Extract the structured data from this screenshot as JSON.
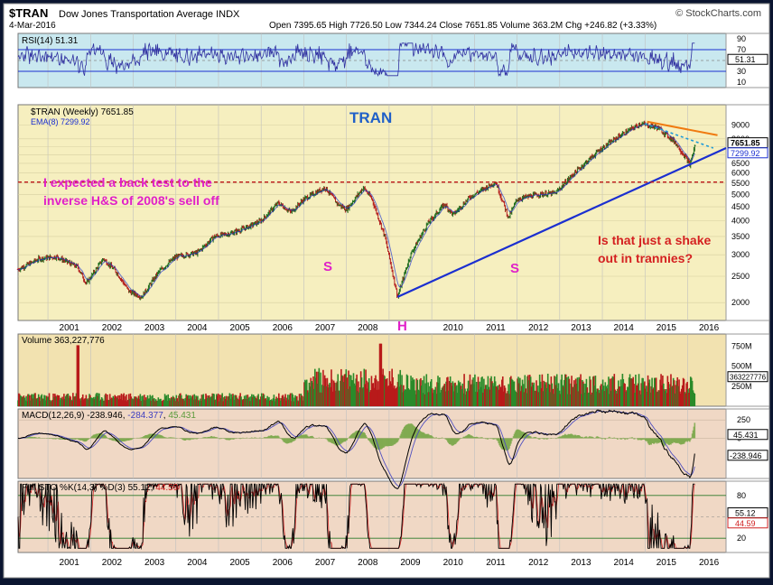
{
  "header": {
    "symbol": "$TRAN",
    "name": "Dow Jones Transportation Average INDX",
    "date": "4-Mar-2016",
    "watermark": "© StockCharts.com",
    "ohlc": "Open 7395.65  High 7726.50  Low 7344.24  Close 7651.85  Volume 363.2M  Chg +246.82 (+3.33%)",
    "chg_value": "+246.82 (+3.33%)"
  },
  "colors": {
    "price_bg": "#f6efbf",
    "rsi_bg": "#c9e8ef",
    "vol_bg": "#f2e2b0",
    "low_bg": "#f0d8c5",
    "up": "#1d6b1d",
    "down": "#b21d1d",
    "trend": "#1b2fd0",
    "annot_pink": "#e020c8",
    "annot_red": "#d42020",
    "title_blue": "#2060c8"
  },
  "chart_data": {
    "type": "line",
    "title": "TRAN",
    "x_years": [
      "2001",
      "2002",
      "2003",
      "2004",
      "2005",
      "2006",
      "2007",
      "2008",
      "2009",
      "2010",
      "2011",
      "2012",
      "2013",
      "2014",
      "2015",
      "2016"
    ],
    "price": {
      "label": "$TRAN (Weekly) 7651.85",
      "ema_label": "EMA(8) 7299.92",
      "last": "7651.85",
      "ema_last": "7299.92",
      "y_ticks": [
        "9000",
        "8000",
        "7500",
        "7000",
        "6500",
        "6000",
        "5500",
        "5000",
        "4500",
        "4000",
        "3500",
        "3000",
        "2500",
        "2000"
      ],
      "anchors": [
        [
          2000.3,
          2650
        ],
        [
          2000.8,
          2900
        ],
        [
          2001.2,
          2950
        ],
        [
          2001.7,
          2700
        ],
        [
          2001.9,
          2350
        ],
        [
          2002.3,
          2900
        ],
        [
          2002.6,
          2600
        ],
        [
          2002.9,
          2200
        ],
        [
          2003.2,
          2100
        ],
        [
          2003.6,
          2600
        ],
        [
          2004.0,
          2950
        ],
        [
          2004.5,
          3050
        ],
        [
          2004.9,
          3500
        ],
        [
          2005.3,
          3600
        ],
        [
          2005.7,
          3800
        ],
        [
          2006.0,
          4000
        ],
        [
          2006.4,
          4650
        ],
        [
          2006.7,
          4300
        ],
        [
          2007.0,
          4800
        ],
        [
          2007.5,
          5300
        ],
        [
          2007.8,
          4600
        ],
        [
          2008.0,
          4400
        ],
        [
          2008.4,
          5300
        ],
        [
          2008.6,
          4800
        ],
        [
          2008.9,
          3500
        ],
        [
          2009.2,
          2100
        ],
        [
          2009.5,
          3000
        ],
        [
          2009.9,
          3900
        ],
        [
          2010.3,
          4600
        ],
        [
          2010.5,
          4200
        ],
        [
          2010.9,
          4900
        ],
        [
          2011.5,
          5550
        ],
        [
          2011.8,
          4100
        ],
        [
          2012.0,
          4800
        ],
        [
          2012.5,
          5000
        ],
        [
          2012.9,
          5050
        ],
        [
          2013.3,
          5900
        ],
        [
          2013.9,
          7200
        ],
        [
          2014.4,
          8200
        ],
        [
          2014.9,
          9100
        ],
        [
          2015.3,
          8800
        ],
        [
          2015.7,
          7800
        ],
        [
          2016.0,
          6650
        ],
        [
          2016.05,
          6400
        ],
        [
          2016.18,
          7651
        ]
      ]
    },
    "rsi": {
      "label": "RSI(14) 51.31",
      "last": "51.31",
      "y_ticks": [
        "90",
        "70",
        "50",
        "30",
        "10"
      ]
    },
    "volume": {
      "label": "Volume 363,227,776",
      "last": "363227776",
      "y_ticks": [
        "750M",
        "500M",
        "250M"
      ]
    },
    "macd": {
      "label": "MACD(12,26,9) -238.946, -284.377, 45.431",
      "v1": "-238.946",
      "v2": "-284.377",
      "v3": "45.431",
      "last": "-238.946",
      "hist_last": "45.431",
      "y_ticks": [
        "250",
        "0"
      ]
    },
    "sto": {
      "label": "Full STO %K(14,3) %D(3) 55.12, 44.59",
      "k": "55.12",
      "d": "44.59",
      "y_ticks": [
        "80",
        "50",
        "20"
      ]
    },
    "annotations": {
      "backtest_line1": "I expected a back test to the",
      "backtest_line2": "inverse H&S of 2008's sell off",
      "shake_line1": "Is that just a shake",
      "shake_line2": "out in trannies?",
      "s_left": "S",
      "s_right": "S",
      "head": "H"
    }
  }
}
